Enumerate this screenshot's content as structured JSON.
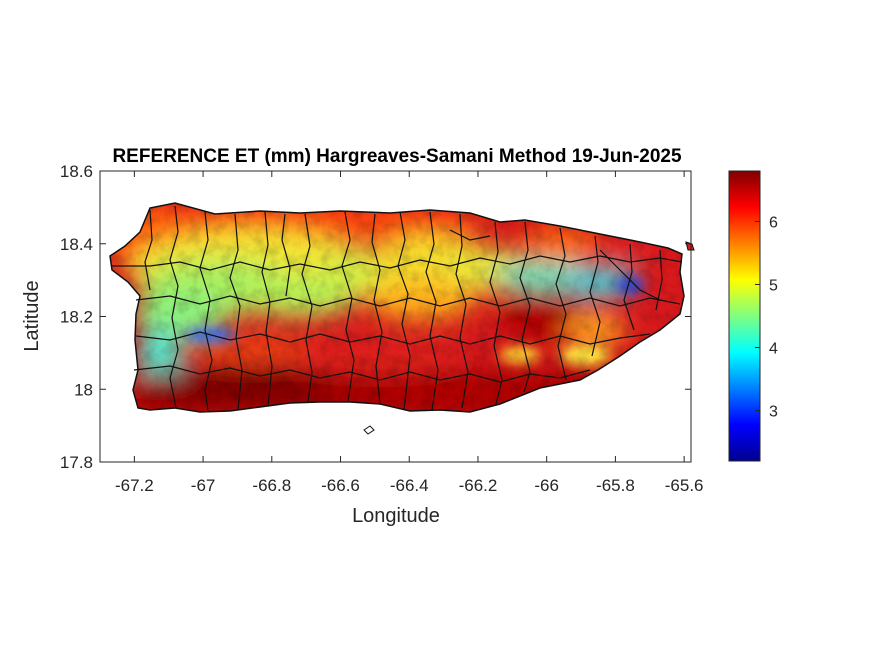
{
  "title": "REFERENCE ET (mm) Hargreaves-Samani Method  19-Jun-2025",
  "axes": {
    "xlabel": "Longitude",
    "ylabel": "Latitude",
    "xlim": [
      -67.3,
      -65.58
    ],
    "ylim": [
      17.8,
      18.6
    ],
    "xticks": [
      "-67.2",
      "-67",
      "-66.8",
      "-66.6",
      "-66.4",
      "-66.2",
      "-66",
      "-65.8",
      "-65.6"
    ],
    "xtick_values": [
      -67.2,
      -67.0,
      -66.8,
      -66.6,
      -66.4,
      -66.2,
      -66.0,
      -65.8,
      -65.6
    ],
    "yticks": [
      "18.6",
      "18.4",
      "18.2",
      "18",
      "17.8"
    ],
    "ytick_values": [
      18.6,
      18.4,
      18.2,
      18.0,
      17.8
    ]
  },
  "colorbar": {
    "colormap": "jet",
    "range": [
      2.2,
      6.8
    ],
    "ticks": [
      "3",
      "4",
      "5",
      "6"
    ],
    "tick_values": [
      3,
      4,
      5,
      6
    ]
  },
  "map": {
    "region": "Puerto Rico",
    "variable": "Reference evapotranspiration",
    "units": "mm",
    "boundaries": "municipality outlines (black)",
    "colors": {
      "very_high": "#8b0000",
      "high": "#e31a1c",
      "orange": "#ff8c00",
      "yellow": "#f5e12a",
      "light_green": "#b5f05a",
      "cyan": "#3fe2d8",
      "blue": "#2050ff"
    }
  }
}
